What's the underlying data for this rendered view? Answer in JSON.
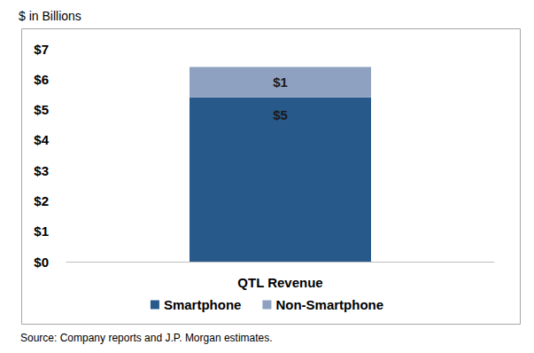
{
  "chart_data": {
    "type": "bar",
    "ylabel": "$ in Billions",
    "source": "Source: Company reports and J.P. Morgan estimates.",
    "categories": [
      "QTL Revenue"
    ],
    "series": [
      {
        "name": "Smartphone",
        "color": "#27598b",
        "values": [
          5.4
        ],
        "value_labels": [
          "$5"
        ]
      },
      {
        "name": "Non-Smartphone",
        "color": "#8ea1c1",
        "values": [
          1.0
        ],
        "value_labels": [
          "$1"
        ]
      }
    ],
    "stacked": true,
    "data_labels": true,
    "ylim": [
      0,
      7
    ],
    "yticks": [
      {
        "value": 0,
        "label": "$0"
      },
      {
        "value": 1,
        "label": "$1"
      },
      {
        "value": 2,
        "label": "$2"
      },
      {
        "value": 3,
        "label": "$3"
      },
      {
        "value": 4,
        "label": "$4"
      },
      {
        "value": 5,
        "label": "$5"
      },
      {
        "value": 6,
        "label": "$6"
      },
      {
        "value": 7,
        "label": "$7"
      }
    ],
    "grid": false,
    "legend": "bottom"
  }
}
